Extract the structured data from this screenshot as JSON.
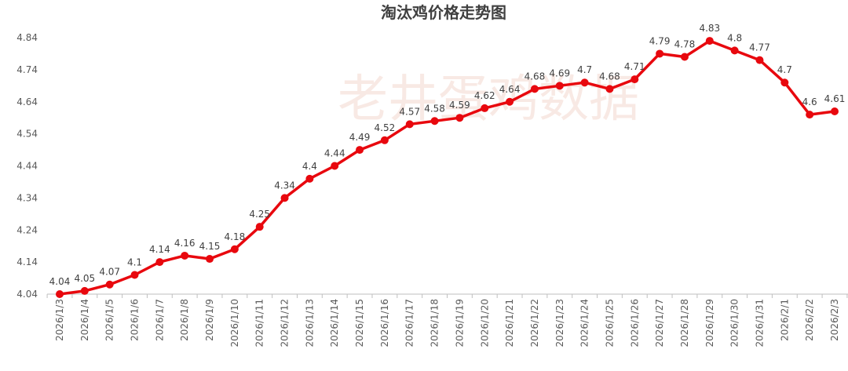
{
  "chart_data": {
    "type": "line",
    "title": "淘汰鸡价格走势图",
    "watermark": "老井蛋鸡数据",
    "xlabel": "",
    "ylabel": "",
    "categories": [
      "2026/1/3",
      "2026/1/4",
      "2026/1/5",
      "2026/1/6",
      "2026/1/7",
      "2026/1/8",
      "2026/1/9",
      "2026/1/10",
      "2026/1/11",
      "2026/1/12",
      "2026/1/13",
      "2026/1/14",
      "2026/1/15",
      "2026/1/16",
      "2026/1/17",
      "2026/1/18",
      "2026/1/19",
      "2026/1/20",
      "2026/1/21",
      "2026/1/22",
      "2026/1/23",
      "2026/1/24",
      "2026/1/25",
      "2026/1/26",
      "2026/1/27",
      "2026/1/28",
      "2026/1/29",
      "2026/1/30",
      "2026/1/31",
      "2026/2/1",
      "2026/2/2",
      "2026/2/3"
    ],
    "series": [
      {
        "values": [
          4.04,
          4.05,
          4.07,
          4.1,
          4.14,
          4.16,
          4.15,
          4.18,
          4.25,
          4.34,
          4.4,
          4.44,
          4.49,
          4.52,
          4.57,
          4.58,
          4.59,
          4.62,
          4.64,
          4.68,
          4.69,
          4.7,
          4.68,
          4.71,
          4.79,
          4.78,
          4.83,
          4.8,
          4.77,
          4.7,
          4.6,
          4.61
        ],
        "labels": [
          "4.04",
          "4.05",
          "4.07",
          "4.1",
          "4.14",
          "4.16",
          "4.15",
          "4.18",
          "4.25",
          "4.34",
          "4.4",
          "4.44",
          "4.49",
          "4.52",
          "4.57",
          "4.58",
          "4.59",
          "4.62",
          "4.64",
          "4.68",
          "4.69",
          "4.7",
          "4.68",
          "4.71",
          "4.79",
          "4.78",
          "4.83",
          "4.8",
          "4.77",
          "4.7",
          "4.6",
          "4.61"
        ]
      }
    ],
    "ylim": [
      4.04,
      4.84
    ],
    "yticks": [
      "4.04",
      "4.14",
      "4.24",
      "4.34",
      "4.44",
      "4.54",
      "4.64",
      "4.74",
      "4.84"
    ],
    "grid": false,
    "legend": "none",
    "colors": {
      "line": "#e8080e",
      "marker": "#e8080e",
      "axis": "#bfbfbf",
      "text": "#595959",
      "title": "#404040",
      "watermark": "#f3d8cf"
    }
  }
}
